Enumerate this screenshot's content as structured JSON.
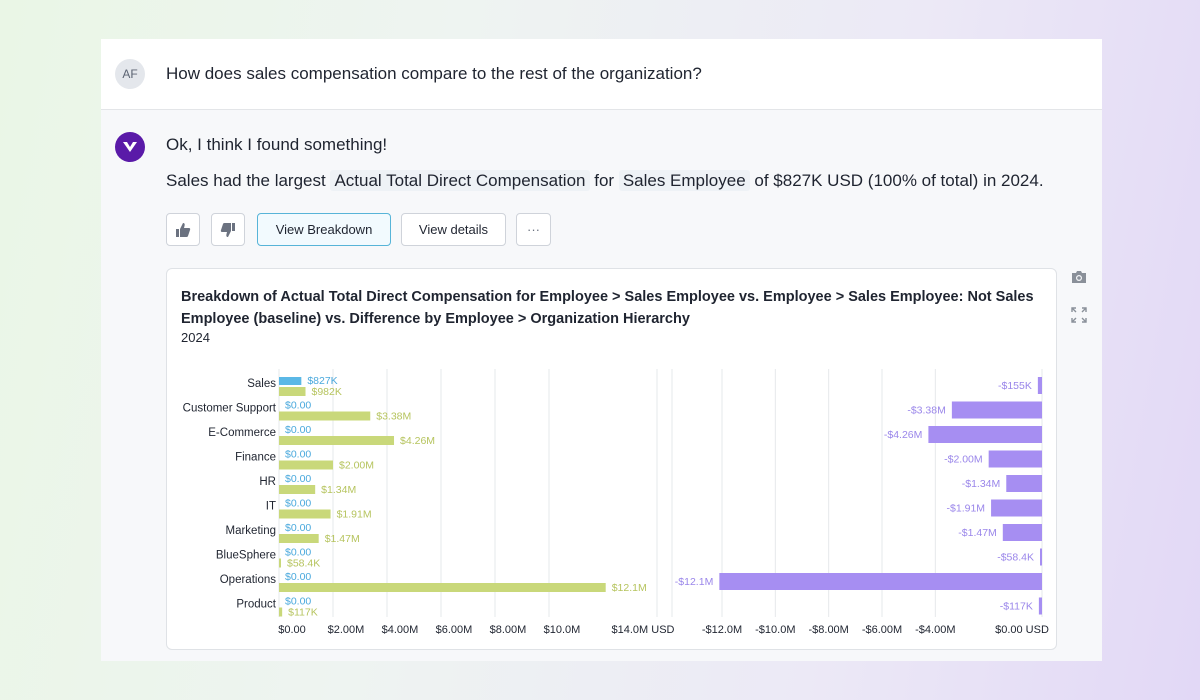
{
  "question": {
    "avatar_initials": "AF",
    "text": "How does sales compensation compare to the rest of the organization?"
  },
  "answer": {
    "intro": "Ok, I think I found something!",
    "prefix": "Sales had the largest",
    "chip_metric": "Actual Total Direct Compensation",
    "connector": "for",
    "chip_filter": "Sales Employee",
    "suffix": "of $827K USD (100% of total) in 2024."
  },
  "actions": {
    "thumbs_up": "thumbs-up-icon",
    "thumbs_down": "thumbs-down-icon",
    "view_breakdown": "View Breakdown",
    "view_details": "View details",
    "more": "···"
  },
  "side_tools": {
    "camera": "camera-icon",
    "expand": "expand-icon"
  },
  "colors": {
    "blue": "#5bb8e6",
    "green": "#c9d87a",
    "purple": "#a68ef2",
    "blue_text": "#4aa9dd",
    "green_text": "#b6c45e",
    "purple_text": "#9a86ea"
  },
  "chart_data": {
    "type": "bar",
    "title": "Breakdown of Actual Total Direct Compensation for Employee > Sales Employee vs. Employee > Sales Employee: Not Sales Employee (baseline) vs. Difference by Employee > Organization Hierarchy",
    "subtitle": "2024",
    "categories": [
      "Sales",
      "Customer Support",
      "E-Commerce",
      "Finance",
      "HR",
      "IT",
      "Marketing",
      "BlueSphere",
      "Operations",
      "Product"
    ],
    "series": [
      {
        "name": "Sales Employee",
        "color": "blue",
        "values": [
          827000,
          0,
          0,
          0,
          0,
          0,
          0,
          0,
          0,
          0
        ],
        "labels": [
          "$827K",
          "$0.00",
          "$0.00",
          "$0.00",
          "$0.00",
          "$0.00",
          "$0.00",
          "$0.00",
          "$0.00",
          "$0.00"
        ]
      },
      {
        "name": "Not Sales Employee (baseline)",
        "color": "green",
        "values": [
          982000,
          3380000,
          4260000,
          2000000,
          1340000,
          1910000,
          1470000,
          58400,
          12100000,
          117000
        ],
        "labels": [
          "$982K",
          "$3.38M",
          "$4.26M",
          "$2.00M",
          "$1.34M",
          "$1.91M",
          "$1.47M",
          "$58.4K",
          "$12.1M",
          "$117K"
        ]
      },
      {
        "name": "Difference",
        "color": "purple",
        "values": [
          -155000,
          -3380000,
          -4260000,
          -2000000,
          -1340000,
          -1910000,
          -1470000,
          -58400,
          -12100000,
          -117000
        ],
        "labels": [
          "-$155K",
          "-$3.38M",
          "-$4.26M",
          "-$2.00M",
          "-$1.34M",
          "-$1.91M",
          "-$1.47M",
          "-$58.4K",
          "-$12.1M",
          "-$117K"
        ]
      }
    ],
    "left_axis": {
      "range": [
        0,
        14000000
      ],
      "ticks": [
        0,
        2000000,
        4000000,
        6000000,
        8000000,
        10000000,
        14000000
      ],
      "tick_labels": [
        "$0.00",
        "$2.00M",
        "$4.00M",
        "$6.00M",
        "$8.00M",
        "$10.0M",
        "$14.0M USD"
      ]
    },
    "right_axis": {
      "range": [
        -12000000,
        0
      ],
      "ticks": [
        -12000000,
        -10000000,
        -8000000,
        -6000000,
        -4000000,
        0
      ],
      "tick_labels": [
        "-$12.0M",
        "-$10.0M",
        "-$8.00M",
        "-$6.00M",
        "-$4.00M",
        "$0.00 USD"
      ]
    },
    "grid": true
  }
}
